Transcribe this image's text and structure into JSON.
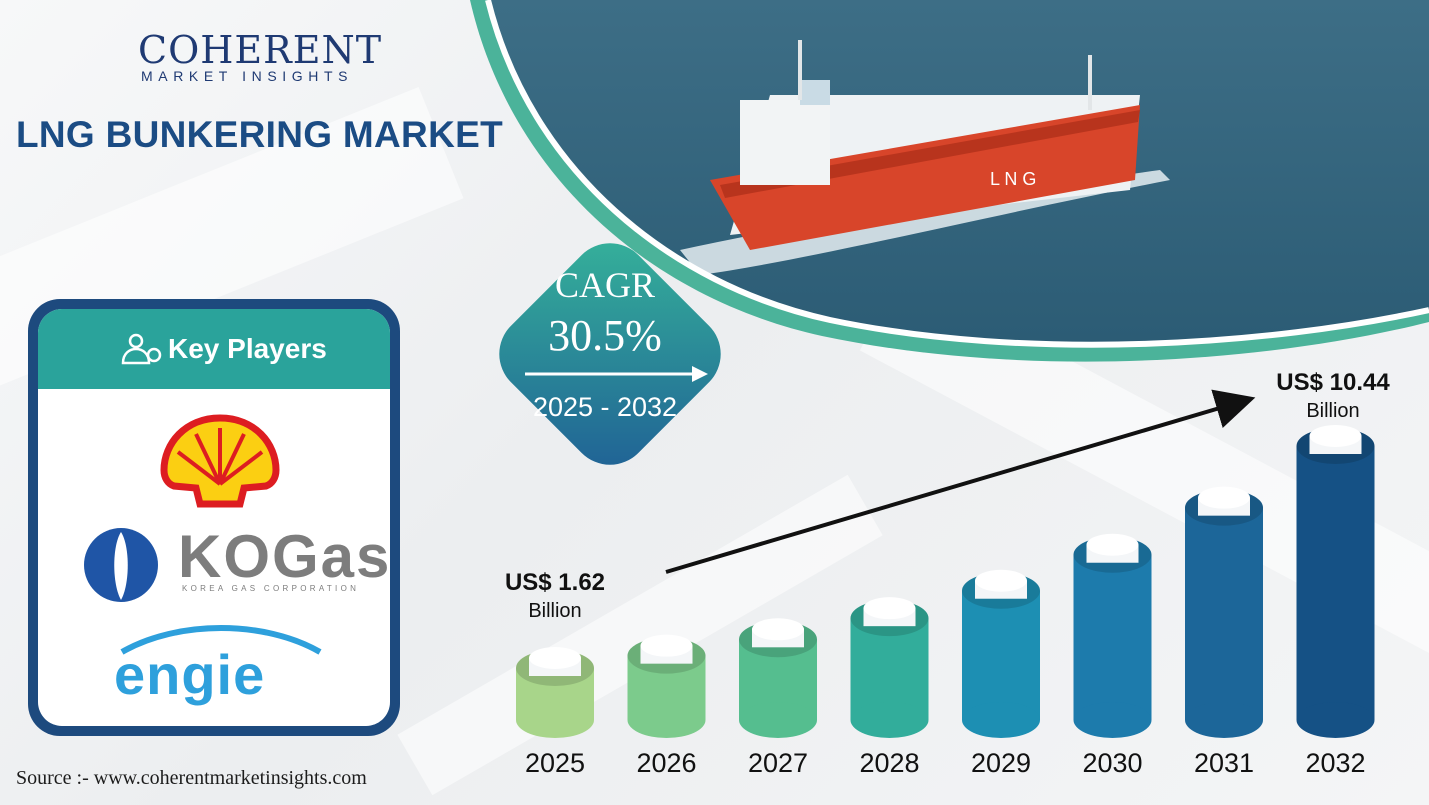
{
  "brand": {
    "name": "COHERENT",
    "tagline": "MARKET INSIGHTS"
  },
  "title": "LNG BUNKERING MARKET",
  "cagr": {
    "label": "CAGR",
    "value": "30.5%",
    "period": "2025 - 2032"
  },
  "key_players": {
    "heading": "Key Players",
    "logos": [
      {
        "name": "Shell"
      },
      {
        "name": "KOGAS",
        "wordmark": "KOGas",
        "subtitle": "KOREA GAS CORPORATION"
      },
      {
        "name": "ENGIE",
        "wordmark": "engie"
      }
    ]
  },
  "source": "Source :-  www.coherentmarketinsights.com",
  "colors": {
    "title": "#1b4c84",
    "teal": "#2aa39b",
    "navy": "#1d4a7e",
    "bars": [
      "#a8d58a",
      "#7ccb8c",
      "#55be8f",
      "#32ad9b",
      "#1d8fb3",
      "#1d7bac",
      "#1c6699",
      "#155185"
    ]
  },
  "chart_data": {
    "type": "bar",
    "categories": [
      "2025",
      "2026",
      "2027",
      "2028",
      "2029",
      "2030",
      "2031",
      "2032"
    ],
    "values": [
      1.62,
      2.11,
      2.76,
      3.6,
      4.69,
      6.12,
      7.99,
      10.44
    ],
    "start_label": {
      "value": "US$ 1.62",
      "unit": "Billion"
    },
    "end_label": {
      "value": "US$ 10.44",
      "unit": "Billion"
    },
    "xlabel": "",
    "ylabel": "",
    "grid": false
  }
}
